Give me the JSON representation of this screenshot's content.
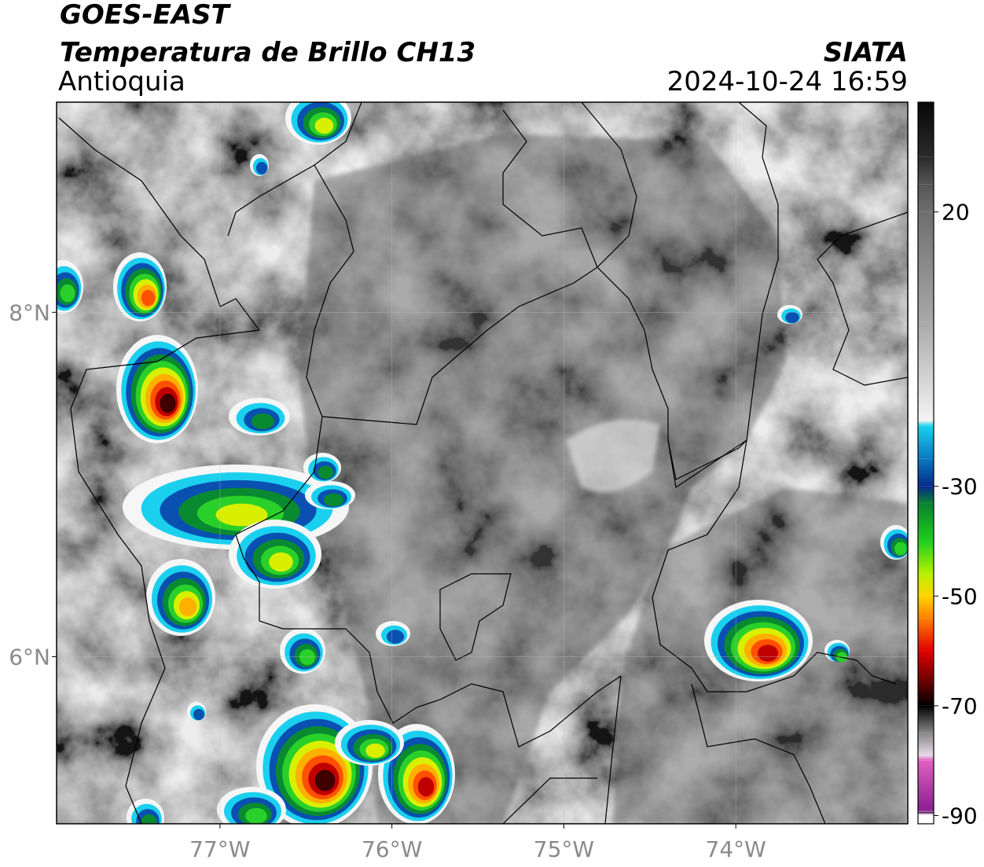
{
  "header": {
    "title": "GOES-EAST",
    "subtitle": "Temperatura de Brillo CH13",
    "region": "Antioquia",
    "source": "SIATA",
    "datetime": "2024-10-24 16:59"
  },
  "map": {
    "type": "map",
    "xlim": [
      -77.95,
      -73
    ],
    "ylim": [
      5.03,
      9.22
    ],
    "xticks": [
      {
        "value": -77,
        "label": "77°W"
      },
      {
        "value": -76,
        "label": "76°W"
      },
      {
        "value": -75,
        "label": "75°W"
      },
      {
        "value": -74,
        "label": "74°W"
      }
    ],
    "yticks": [
      {
        "value": 8,
        "label": "8°N"
      },
      {
        "value": 6,
        "label": "6°N"
      }
    ],
    "grid": true
  },
  "colorbar": {
    "lim": [
      -91.5,
      40
    ],
    "ticks": [
      20,
      -30,
      -50,
      -70,
      -90
    ],
    "stops": [
      {
        "value": 40,
        "color": "#080808"
      },
      {
        "value": 30,
        "color": "#2a2a2a"
      },
      {
        "value": 25,
        "color": "#555555"
      },
      {
        "value": 20,
        "color": "#6e6e6e"
      },
      {
        "value": 0,
        "color": "#a8a8a8"
      },
      {
        "value": -18,
        "color": "#f4f4f4"
      },
      {
        "value": -19,
        "color": "#1ad0ee"
      },
      {
        "value": -25,
        "color": "#0a78c0"
      },
      {
        "value": -30,
        "color": "#082a8a"
      },
      {
        "value": -33,
        "color": "#0a8030"
      },
      {
        "value": -40,
        "color": "#1ed01e"
      },
      {
        "value": -46,
        "color": "#b8f000"
      },
      {
        "value": -50,
        "color": "#ffd400"
      },
      {
        "value": -54,
        "color": "#ff8000"
      },
      {
        "value": -60,
        "color": "#e00000"
      },
      {
        "value": -66,
        "color": "#600000"
      },
      {
        "value": -70,
        "color": "#000000"
      },
      {
        "value": -75,
        "color": "#888888"
      },
      {
        "value": -79,
        "color": "#e8d8e8"
      },
      {
        "value": -80,
        "color": "#e060c0"
      },
      {
        "value": -89,
        "color": "#8a2090"
      },
      {
        "value": -90,
        "color": "#ffffff"
      },
      {
        "value": -91.5,
        "color": "#ffffff"
      }
    ]
  }
}
